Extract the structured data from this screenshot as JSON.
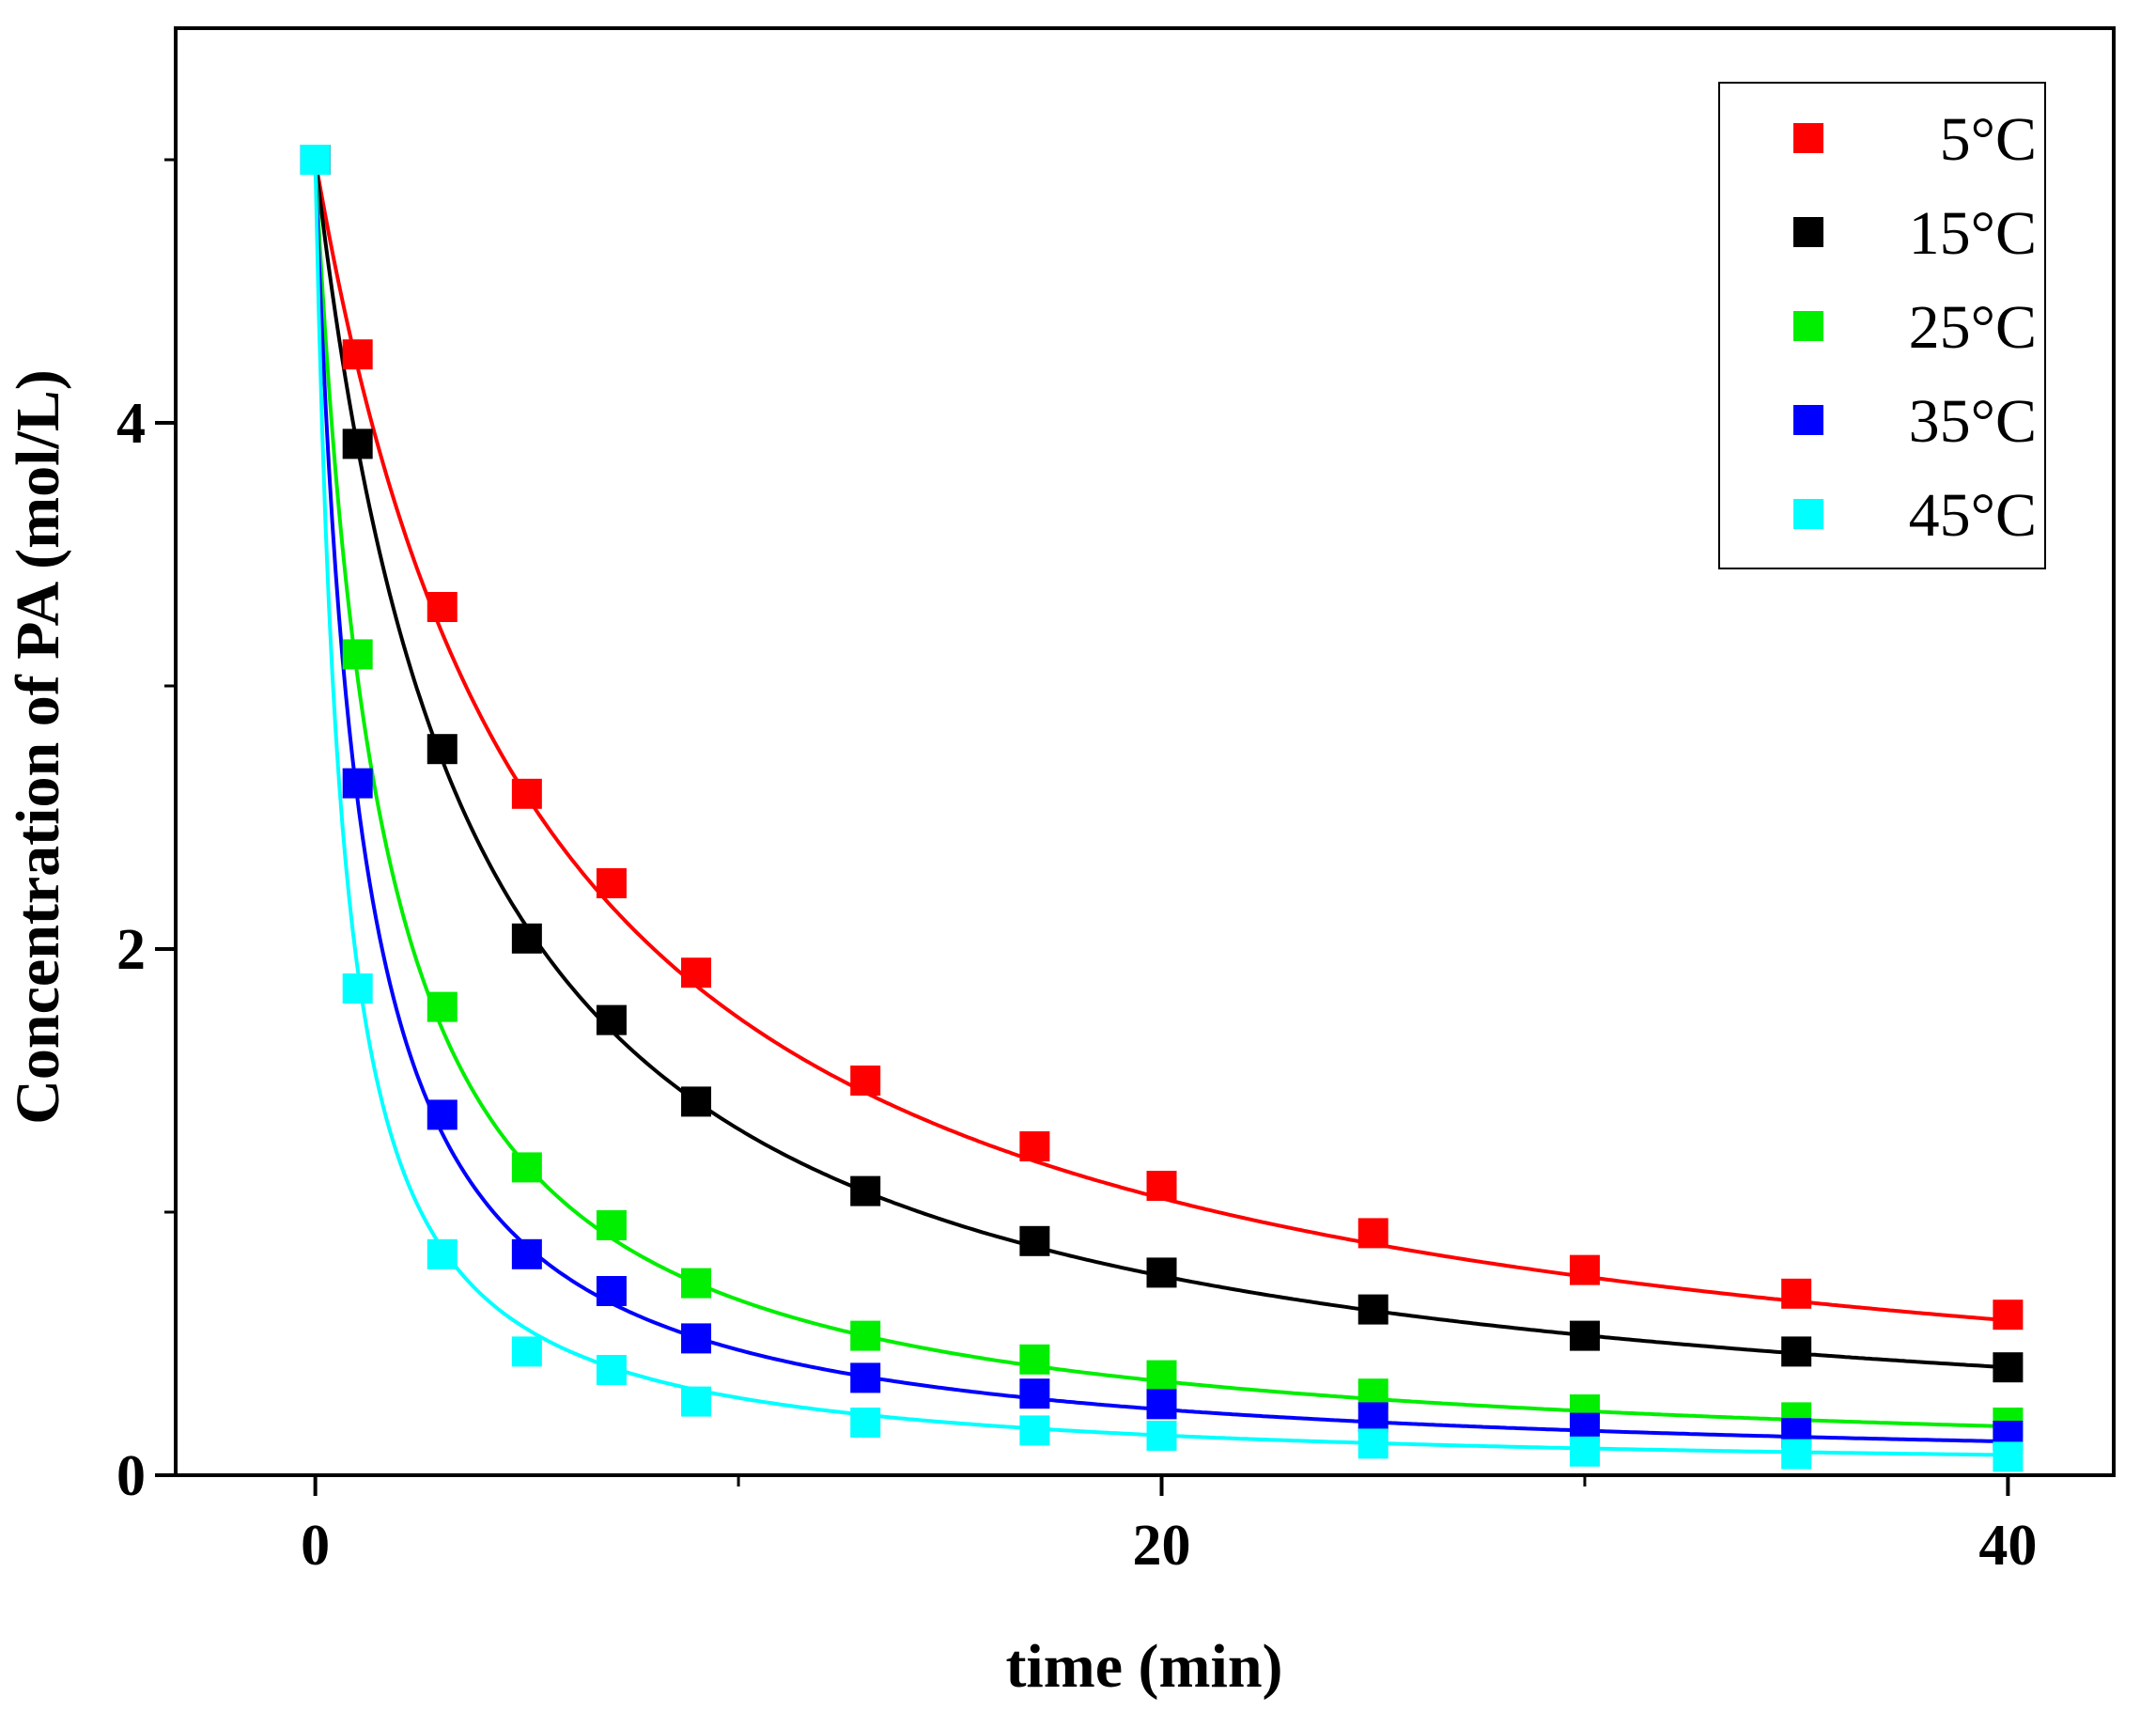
{
  "chart_data": {
    "type": "scatter",
    "title": "",
    "xlabel": "time (min)",
    "ylabel": "Concentration of PA (mol/L)",
    "xlim": [
      -3.3,
      42.5
    ],
    "ylim": [
      0,
      5.5
    ],
    "xticks": [
      0,
      20,
      40
    ],
    "xtick_labels": [
      "0",
      "20",
      "40"
    ],
    "yticks": [
      0,
      2,
      4
    ],
    "ytick_labels": [
      "0",
      "2",
      "4"
    ],
    "minor_xticks": [
      10,
      30
    ],
    "minor_yticks": [
      1,
      3,
      5
    ],
    "grid": false,
    "legend_position": "top-right",
    "fit_model": "second-order",
    "x": [
      0,
      1,
      3,
      5,
      7,
      9,
      13,
      17,
      20,
      25,
      30,
      35,
      40
    ],
    "series": [
      {
        "name": "5°C",
        "color": "#ff0000",
        "c0": 5.0,
        "k": 0.0375,
        "values": [
          5.0,
          4.26,
          3.3,
          2.59,
          2.25,
          1.91,
          1.5,
          1.25,
          1.1,
          0.92,
          0.78,
          0.69,
          0.61
        ]
      },
      {
        "name": "15°C",
        "color": "#000000",
        "c0": 5.0,
        "k": 0.056,
        "values": [
          5.0,
          3.92,
          2.76,
          2.04,
          1.73,
          1.42,
          1.08,
          0.89,
          0.77,
          0.63,
          0.53,
          0.47,
          0.41
        ]
      },
      {
        "name": "25°C",
        "color": "#00ee00",
        "c0": 5.0,
        "k": 0.13,
        "values": [
          5.0,
          3.12,
          1.78,
          1.17,
          0.95,
          0.73,
          0.53,
          0.44,
          0.38,
          0.31,
          0.25,
          0.22,
          0.2
        ]
      },
      {
        "name": "35°C",
        "color": "#0000ff",
        "c0": 5.0,
        "k": 0.19,
        "values": [
          5.0,
          2.63,
          1.37,
          0.84,
          0.7,
          0.52,
          0.37,
          0.31,
          0.27,
          0.22,
          0.18,
          0.16,
          0.15
        ]
      },
      {
        "name": "45°C",
        "color": "#00ffff",
        "c0": 5.0,
        "k": 0.32,
        "values": [
          5.0,
          1.85,
          0.84,
          0.47,
          0.4,
          0.28,
          0.2,
          0.17,
          0.15,
          0.12,
          0.09,
          0.08,
          0.07
        ]
      }
    ]
  }
}
